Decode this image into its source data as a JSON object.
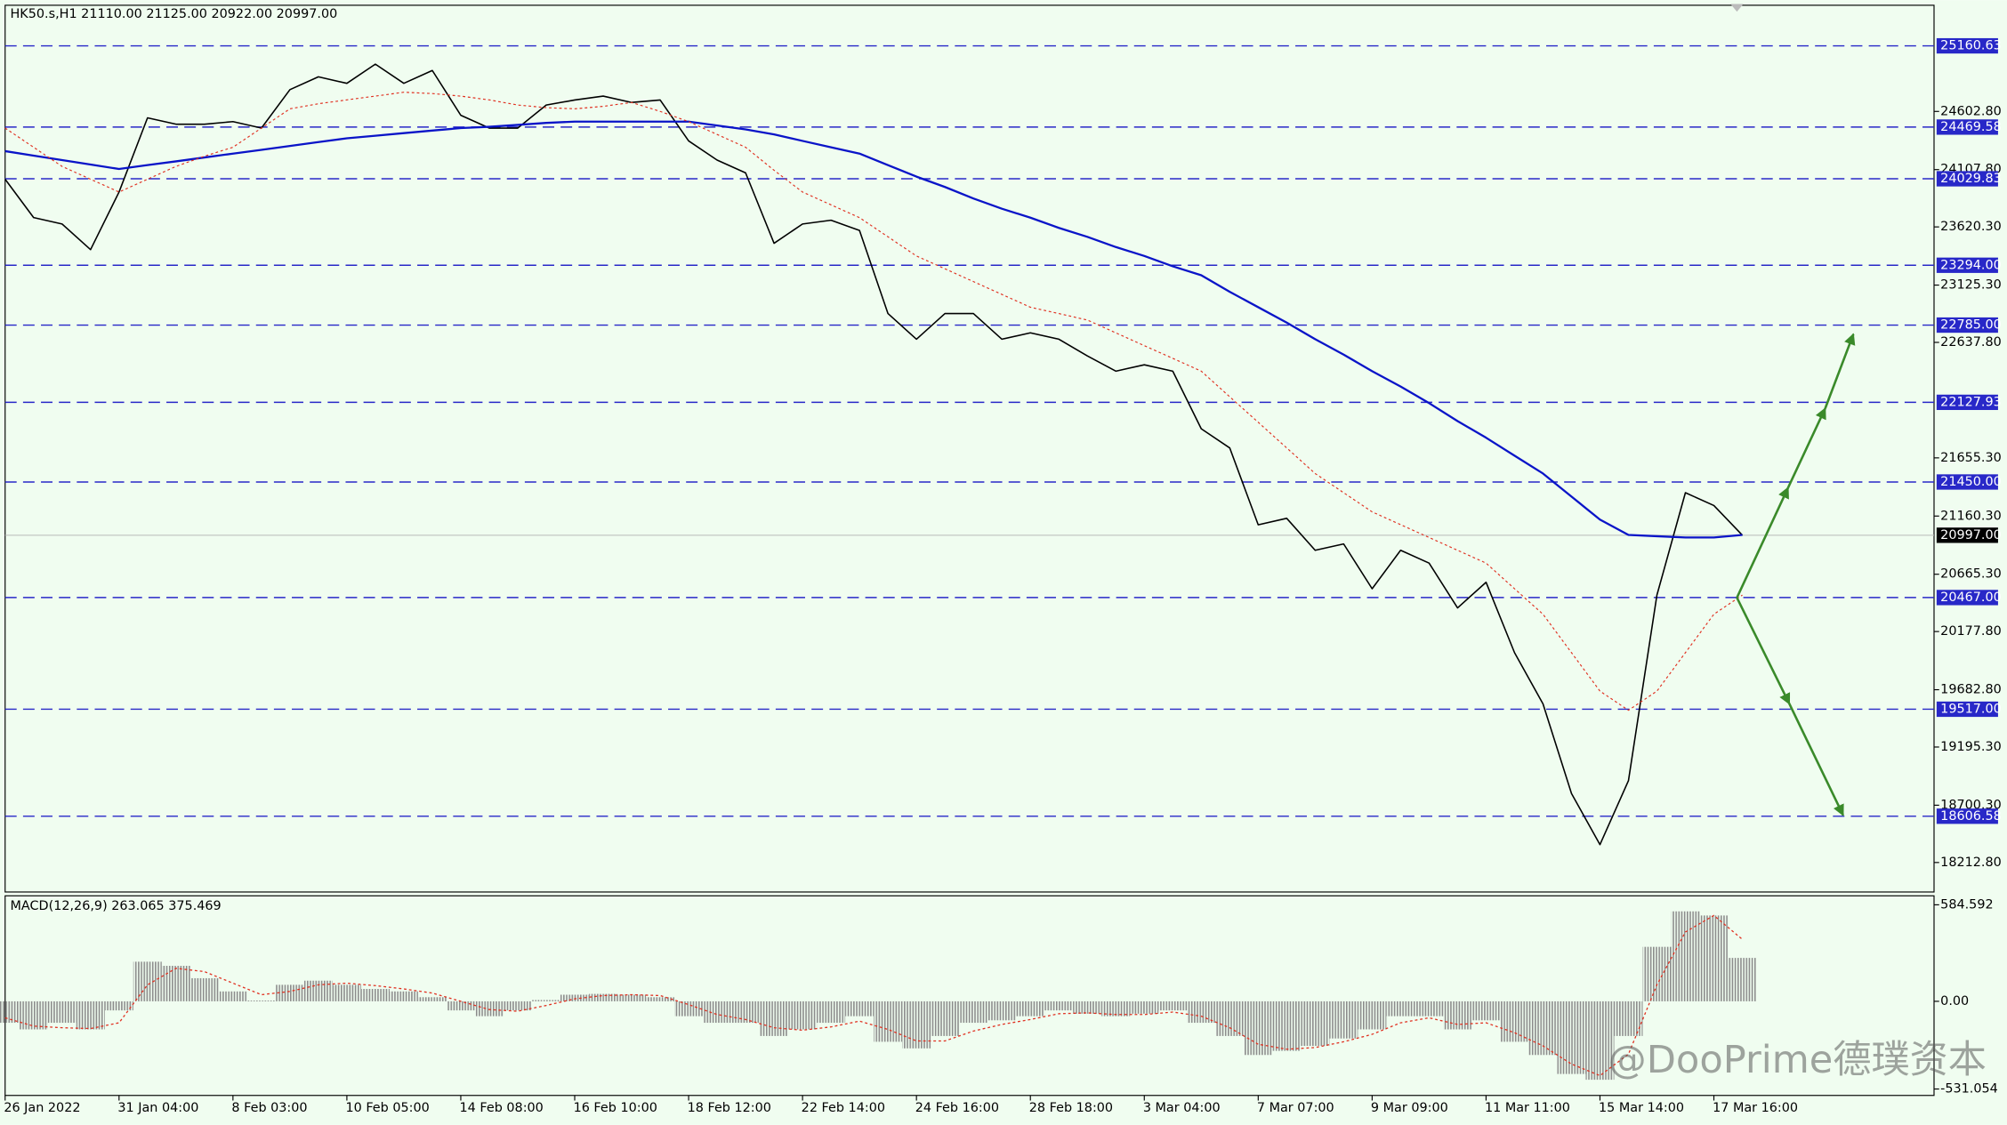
{
  "chart_data": [
    {
      "type": "line",
      "title": "HK50.s,H1  21110.00 21125.00 20922.00 20997.00",
      "ylim": [
        17962,
        25506
      ],
      "yticks": [
        {
          "value": 24602.8,
          "label": "24602.80"
        },
        {
          "value": 24107.8,
          "label": "24107.80"
        },
        {
          "value": 23620.3,
          "label": "23620.30"
        },
        {
          "value": 23125.3,
          "label": "23125.30"
        },
        {
          "value": 22637.8,
          "label": "22637.80"
        },
        {
          "value": 21655.3,
          "label": "21655.30"
        },
        {
          "value": 21160.3,
          "label": "21160.30"
        },
        {
          "value": 20665.3,
          "label": "20665.30"
        },
        {
          "value": 20177.8,
          "label": "20177.80"
        },
        {
          "value": 19682.8,
          "label": "19682.80"
        },
        {
          "value": 19195.3,
          "label": "19195.30"
        },
        {
          "value": 18700.3,
          "label": "18700.30"
        },
        {
          "value": 18212.8,
          "label": "18212.80"
        }
      ],
      "levels": [
        25160.63,
        24469.58,
        24029.83,
        {
          "value": 23294,
          "label": "23294.00"
        },
        {
          "value": 22785,
          "label": "22785.00"
        },
        22127.93,
        {
          "value": 21450,
          "label": "21450.00"
        },
        {
          "value": 20467,
          "label": "20467.00"
        },
        {
          "value": 19517,
          "label": "19517.00"
        },
        18606.58
      ],
      "level_color": "#2828c8",
      "last_price": {
        "value": 20997,
        "label": "20997.00"
      },
      "series": [
        {
          "color": "#000000",
          "style": "solid",
          "values": [
            24026,
            23700,
            23645,
            23427,
            23917,
            24548,
            24494,
            24494,
            24516,
            24461,
            24788,
            24897,
            24842,
            25005,
            24842,
            24951,
            24570,
            24461,
            24461,
            24657,
            24700,
            24733,
            24679,
            24700,
            24352,
            24189,
            24080,
            23481,
            23645,
            23677,
            23590,
            22883,
            22665,
            22883,
            22883,
            22665,
            22719,
            22665,
            22523,
            22393,
            22447,
            22393,
            21903,
            21740,
            21086,
            21141,
            20869,
            20923,
            20542,
            20869,
            20760,
            20379,
            20597,
            19998,
            19562,
            18800,
            18365,
            18909,
            20488,
            21359,
            21250,
            20997
          ]
        },
        {
          "color": "#0a14c8",
          "style": "solid",
          "values": [
            24265,
            24227,
            24189,
            24151,
            24113,
            24146,
            24178,
            24211,
            24244,
            24276,
            24309,
            24342,
            24374,
            24396,
            24418,
            24440,
            24461,
            24472,
            24488,
            24505,
            24516,
            24516,
            24516,
            24516,
            24516,
            24483,
            24450,
            24407,
            24352,
            24298,
            24244,
            24146,
            24048,
            23960,
            23862,
            23775,
            23699,
            23612,
            23536,
            23449,
            23373,
            23285,
            23209,
            23068,
            22937,
            22806,
            22665,
            22534,
            22393,
            22262,
            22121,
            21968,
            21827,
            21674,
            21522,
            21326,
            21130,
            21000,
            20989,
            20978,
            20978,
            21000
          ]
        },
        {
          "color": "#e03020",
          "style": "dotted",
          "values": [
            24461,
            24298,
            24135,
            24026,
            23917,
            24026,
            24135,
            24222,
            24298,
            24461,
            24625,
            24668,
            24701,
            24733,
            24766,
            24755,
            24733,
            24701,
            24657,
            24635,
            24625,
            24646,
            24679,
            24603,
            24516,
            24407,
            24298,
            24102,
            23917,
            23808,
            23699,
            23536,
            23373,
            23264,
            23155,
            23046,
            22937,
            22883,
            22828,
            22719,
            22610,
            22502,
            22393,
            22175,
            21958,
            21740,
            21522,
            21359,
            21196,
            21087,
            20978,
            20869,
            20760,
            20542,
            20325,
            19998,
            19671,
            19508,
            19671,
            19998,
            20325,
            20488
          ]
        }
      ]
    },
    {
      "type": "macd",
      "title": "MACD(12,26,9) 263.065 375.469",
      "ylim": [
        -570,
        639
      ],
      "yticks": [
        584.592,
        {
          "value": 0,
          "label": "0.00"
        },
        -531.054
      ],
      "categories": [
        "26 Jan 2022",
        null,
        null,
        null,
        "31 Jan 04:00",
        null,
        null,
        null,
        "8 Feb 03:00",
        null,
        null,
        null,
        "10 Feb 05:00",
        null,
        null,
        null,
        "14 Feb 08:00",
        null,
        null,
        null,
        "16 Feb 10:00",
        null,
        null,
        null,
        "18 Feb 12:00",
        null,
        null,
        null,
        "22 Feb 14:00",
        null,
        null,
        null,
        "24 Feb 16:00",
        null,
        null,
        null,
        "28 Feb 18:00",
        null,
        null,
        null,
        "3 Mar 04:00",
        null,
        null,
        null,
        "7 Mar 07:00",
        null,
        null,
        null,
        "9 Mar 09:00",
        null,
        null,
        null,
        "11 Mar 11:00",
        null,
        null,
        null,
        "15 Mar 14:00",
        null,
        null,
        null,
        "17 Mar 16:00",
        null
      ],
      "series": [
        {
          "color": "#8c8c8c",
          "style": "bar",
          "values": [
            -130,
            -170,
            -130,
            -170,
            -55,
            240,
            215,
            140,
            60,
            5,
            100,
            125,
            100,
            75,
            60,
            25,
            -55,
            -90,
            -55,
            8,
            40,
            45,
            40,
            25,
            -90,
            -130,
            -130,
            -210,
            -170,
            -130,
            -90,
            -245,
            -285,
            -210,
            -130,
            -115,
            -90,
            -55,
            -75,
            -90,
            -75,
            -55,
            -130,
            -210,
            -325,
            -300,
            -270,
            -225,
            -170,
            -90,
            -90,
            -170,
            -115,
            -245,
            -325,
            -440,
            -475,
            -210,
            330,
            545,
            520,
            263
          ]
        },
        {
          "color": "#e03020",
          "style": "dotted",
          "values": [
            -100,
            -150,
            -160,
            -165,
            -130,
            100,
            200,
            180,
            110,
            40,
            60,
            100,
            110,
            95,
            75,
            50,
            0,
            -50,
            -60,
            -25,
            15,
            35,
            40,
            35,
            -20,
            -80,
            -110,
            -160,
            -175,
            -155,
            -120,
            -170,
            -240,
            -240,
            -180,
            -140,
            -110,
            -75,
            -70,
            -80,
            -80,
            -65,
            -90,
            -160,
            -260,
            -290,
            -280,
            -245,
            -200,
            -130,
            -100,
            -140,
            -130,
            -190,
            -270,
            -380,
            -450,
            -320,
            100,
            420,
            520,
            375
          ]
        }
      ]
    }
  ],
  "watermark": "@DooPrime德璞资本"
}
